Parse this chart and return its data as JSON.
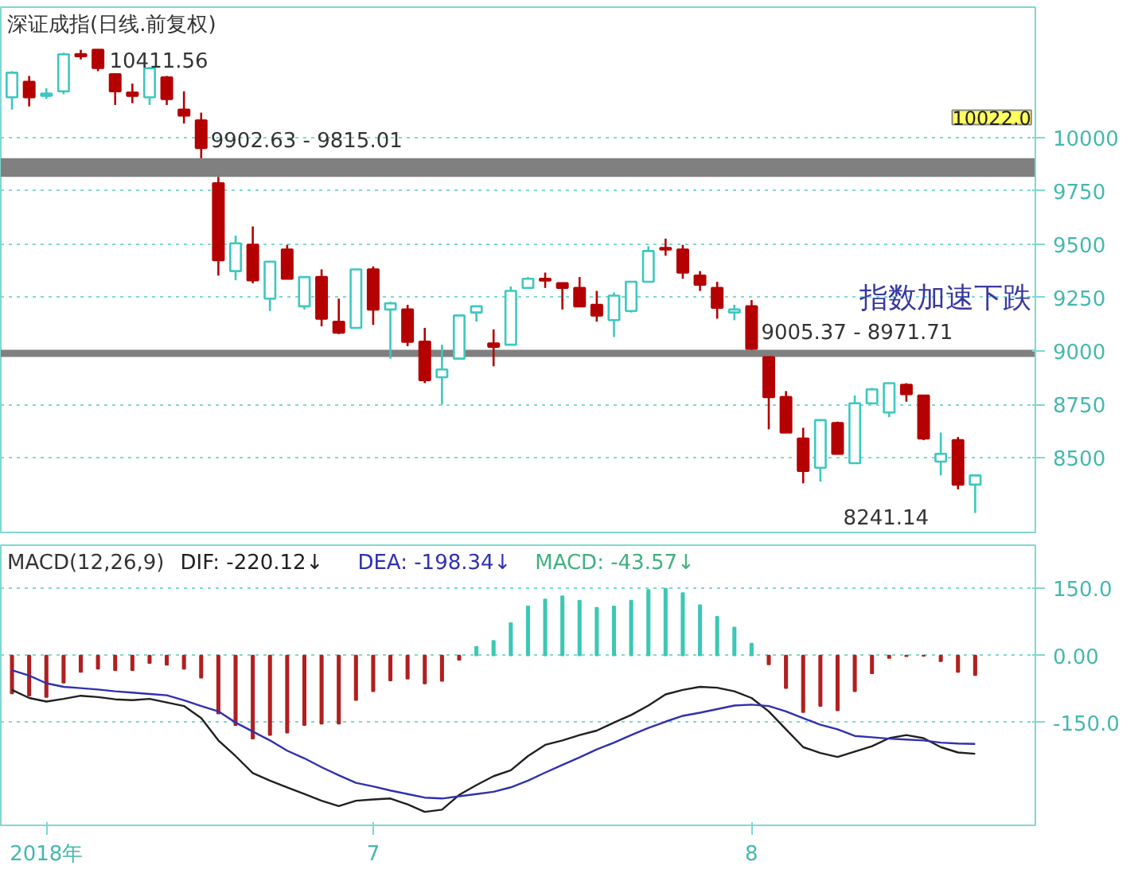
{
  "chart_data": [
    {
      "type": "candlestick",
      "title": "深证成指(日线.前复权)",
      "categories": [
        null,
        null,
        null,
        null,
        null,
        null,
        null,
        null,
        null,
        null,
        null,
        null,
        null,
        null,
        null,
        null,
        null,
        null,
        null,
        null,
        null,
        null,
        null,
        null,
        null,
        null,
        null,
        null,
        null,
        null,
        null,
        null,
        null,
        null,
        null,
        null,
        null,
        null,
        null,
        null,
        null,
        null,
        null,
        null,
        null,
        null,
        null,
        null,
        null,
        null,
        null,
        null,
        null,
        null,
        null,
        null,
        null
      ],
      "ohlc": [
        [
          10188,
          10310,
          10130,
          10303
        ],
        [
          10260,
          10288,
          10145,
          10188
        ],
        [
          10195,
          10230,
          10180,
          10205
        ],
        [
          10216,
          10397,
          10202,
          10389
        ],
        [
          10390,
          10410,
          10365,
          10380
        ],
        [
          10410,
          10411.56,
          10310,
          10325
        ],
        [
          10296,
          10300,
          10152,
          10216
        ],
        [
          10210,
          10252,
          10160,
          10195
        ],
        [
          10188,
          10330,
          10152,
          10324
        ],
        [
          10281,
          10288,
          10152,
          10180
        ],
        [
          10130,
          10216,
          10065,
          10102
        ],
        [
          10080,
          10116,
          9902.63,
          9950
        ],
        [
          9785,
          9815.01,
          9353,
          9425
        ],
        [
          9374,
          9540,
          9331,
          9504
        ],
        [
          9497,
          9583,
          9317,
          9331
        ],
        [
          9245,
          9418,
          9187,
          9418
        ],
        [
          9475,
          9497,
          9338,
          9338
        ],
        [
          9209,
          9346,
          9194,
          9346
        ],
        [
          9346,
          9382,
          9115,
          9151
        ],
        [
          9137,
          9245,
          9079,
          9086
        ],
        [
          9108,
          9382,
          9108,
          9382
        ],
        [
          9382,
          9396,
          9122,
          9194
        ],
        [
          9194,
          9230,
          8964,
          9223
        ],
        [
          9194,
          9216,
          9022,
          9043
        ],
        [
          9043,
          9108,
          8849,
          8863
        ],
        [
          8877,
          9029,
          8748,
          8913
        ],
        [
          8964,
          9166,
          8964,
          9166
        ],
        [
          9180,
          9209,
          9137,
          9209
        ],
        [
          9035,
          9101,
          8928,
          9020
        ],
        [
          9029,
          9302,
          9029,
          9281
        ],
        [
          9295,
          9346,
          9295,
          9338
        ],
        [
          9338,
          9367,
          9295,
          9330
        ],
        [
          9317,
          9317,
          9194,
          9295
        ],
        [
          9295,
          9346,
          9209,
          9209
        ],
        [
          9216,
          9281,
          9137,
          9166
        ],
        [
          9144,
          9274,
          9065,
          9259
        ],
        [
          9187,
          9324,
          9180,
          9324
        ],
        [
          9324,
          9490,
          9324,
          9468
        ],
        [
          9482,
          9526,
          9446,
          9475
        ],
        [
          9475,
          9497,
          9338,
          9367
        ],
        [
          9353,
          9374,
          9281,
          9310
        ],
        [
          9295,
          9324,
          9151,
          9202
        ],
        [
          9180,
          9216,
          9144,
          9194
        ],
        [
          9209,
          9238,
          9005.37,
          9010
        ],
        [
          8971,
          8971.71,
          8633,
          8784
        ],
        [
          8784,
          8812,
          8618,
          8618
        ],
        [
          8590,
          8640,
          8380,
          8438
        ],
        [
          8453,
          8676,
          8388,
          8676
        ],
        [
          8662,
          8669,
          8518,
          8518
        ],
        [
          8474,
          8791,
          8474,
          8755
        ],
        [
          8755,
          8827,
          8755,
          8820
        ],
        [
          8712,
          8849,
          8690,
          8849
        ],
        [
          8841,
          8849,
          8762,
          8798
        ],
        [
          8791,
          8791,
          8582,
          8590
        ],
        [
          8482,
          8618,
          8417,
          8518
        ],
        [
          8582,
          8597,
          8352,
          8374
        ],
        [
          8374,
          8417,
          8241.14,
          8417
        ]
      ],
      "colors": [
        "#3cc8c0",
        "#b40000",
        "#3cc8c0",
        "#3cc8c0",
        "#b40000",
        "#b40000",
        "#b40000",
        "#b40000",
        "#3cc8c0",
        "#b40000",
        "#b40000",
        "#b40000",
        "#b40000",
        "#3cc8c0",
        "#b40000",
        "#3cc8c0",
        "#b40000",
        "#3cc8c0",
        "#b40000",
        "#b40000",
        "#3cc8c0",
        "#b40000",
        "#3cc8c0",
        "#b40000",
        "#b40000",
        "#3cc8c0",
        "#3cc8c0",
        "#3cc8c0",
        "#b40000",
        "#3cc8c0",
        "#3cc8c0",
        "#b40000",
        "#b40000",
        "#b40000",
        "#b40000",
        "#3cc8c0",
        "#3cc8c0",
        "#3cc8c0",
        "#b40000",
        "#b40000",
        "#b40000",
        "#b40000",
        "#3cc8c0",
        "#b40000",
        "#b40000",
        "#b40000",
        "#b40000",
        "#3cc8c0",
        "#b40000",
        "#3cc8c0",
        "#3cc8c0",
        "#3cc8c0",
        "#b40000",
        "#b40000",
        "#3cc8c0",
        "#b40000",
        "#3cc8c0"
      ],
      "ylim": [
        8150,
        10610
      ],
      "yticks": [
        8500,
        8750,
        9000,
        9250,
        9500,
        9750,
        10000
      ],
      "tick_labels": "y",
      "grid": "y",
      "bands": [
        {
          "axis": "y",
          "from": 9815.01,
          "to": 9902.63,
          "color": "#808080"
        },
        {
          "axis": "y",
          "from": 8971.71,
          "to": 9005.37,
          "color": "#808080"
        }
      ],
      "annotations": [
        "10411.56",
        {
          "text": "9902.63 - 9815.01",
          "y": 9902.63
        },
        {
          "text": "9005.37 - 8971.71",
          "y": 9005.37
        },
        "8241.14",
        "10022.0",
        "指数加速下跌"
      ]
    },
    {
      "type": "bar",
      "title": "MACD(12,26,9)",
      "categories": [
        null,
        null,
        "2018年",
        null,
        null,
        null,
        null,
        null,
        null,
        null,
        null,
        null,
        null,
        null,
        null,
        null,
        null,
        null,
        null,
        null,
        null,
        "7",
        null,
        null,
        null,
        null,
        null,
        null,
        null,
        null,
        null,
        null,
        null,
        null,
        null,
        null,
        null,
        null,
        null,
        null,
        null,
        null,
        null,
        "8",
        null,
        null,
        null,
        null,
        null,
        null,
        null,
        null,
        null,
        null,
        null,
        null,
        null
      ],
      "ylim": [
        -380,
        247
      ],
      "yticks": [
        {
          "value": -150,
          "label": "-150.0"
        },
        {
          "value": 0,
          "label": "0.00"
        },
        {
          "value": 150,
          "label": "150.0"
        }
      ],
      "grid": "y",
      "legend": "top left",
      "series": [
        {
          "name": "DIF: -220.12↓",
          "type": "line",
          "color": "#202020",
          "values": [
            -77,
            -95,
            -103,
            -97,
            -90,
            -93,
            -98,
            -100,
            -97,
            -105,
            -113,
            -140,
            -190,
            -225,
            -263,
            -280,
            -295,
            -310,
            -325,
            -337,
            -325,
            -322,
            -320,
            -333,
            -350,
            -345,
            -312,
            -290,
            -270,
            -257,
            -225,
            -200,
            -190,
            -178,
            -168,
            -150,
            -133,
            -112,
            -87,
            -77,
            -70,
            -72,
            -80,
            -95,
            -125,
            -165,
            -205,
            -218,
            -227,
            -215,
            -203,
            -185,
            -178,
            -185,
            -205,
            -217,
            -220
          ]
        },
        {
          "name": "DEA: -198.34↓",
          "type": "line",
          "color": "#3030b0",
          "values": [
            -33,
            -45,
            -62,
            -70,
            -73,
            -76,
            -80,
            -83,
            -86,
            -89,
            -100,
            -113,
            -125,
            -150,
            -170,
            -190,
            -213,
            -230,
            -250,
            -268,
            -285,
            -293,
            -302,
            -310,
            -318,
            -320,
            -315,
            -310,
            -305,
            -295,
            -280,
            -262,
            -245,
            -228,
            -210,
            -195,
            -178,
            -162,
            -148,
            -135,
            -128,
            -120,
            -112,
            -110,
            -113,
            -125,
            -140,
            -155,
            -165,
            -180,
            -183,
            -186,
            -188,
            -190,
            -195,
            -197,
            -198
          ]
        },
        {
          "name": "MACD: -43.57↓",
          "type": "bar",
          "color": "#40b080",
          "values": [
            -85,
            -90,
            -93,
            -61,
            -37,
            -30,
            -33,
            -33,
            -17,
            -21,
            -30,
            -50,
            -130,
            -156,
            -186,
            -178,
            -173,
            -156,
            -153,
            -153,
            -100,
            -80,
            -56,
            -52,
            -63,
            -57,
            -10,
            20,
            33,
            73,
            110,
            126,
            133,
            123,
            107,
            110,
            123,
            147,
            150,
            140,
            113,
            87,
            63,
            27,
            -20,
            -73,
            -127,
            -113,
            -123,
            -80,
            -40,
            -6,
            -2,
            -1,
            -13,
            -37,
            -44
          ],
          "colors": [
            "#b02020",
            "#b02020",
            "#b02020",
            "#b02020",
            "#b02020",
            "#b02020",
            "#b02020",
            "#b02020",
            "#b02020",
            "#b02020",
            "#b02020",
            "#b02020",
            "#b02020",
            "#b02020",
            "#b02020",
            "#b02020",
            "#b02020",
            "#b02020",
            "#b02020",
            "#b02020",
            "#b02020",
            "#b02020",
            "#b02020",
            "#b02020",
            "#b02020",
            "#b02020",
            "#b02020",
            "#3cc8b4",
            "#3cc8b4",
            "#3cc8b4",
            "#3cc8b4",
            "#3cc8b4",
            "#3cc8b4",
            "#3cc8b4",
            "#3cc8b4",
            "#3cc8b4",
            "#3cc8b4",
            "#3cc8b4",
            "#3cc8b4",
            "#3cc8b4",
            "#3cc8b4",
            "#3cc8b4",
            "#3cc8b4",
            "#3cc8b4",
            "#b02020",
            "#b02020",
            "#b02020",
            "#b02020",
            "#b02020",
            "#b02020",
            "#b02020",
            "#b02020",
            "#b02020",
            "#b02020",
            "#b02020",
            "#b02020",
            "#b02020"
          ]
        }
      ]
    }
  ]
}
